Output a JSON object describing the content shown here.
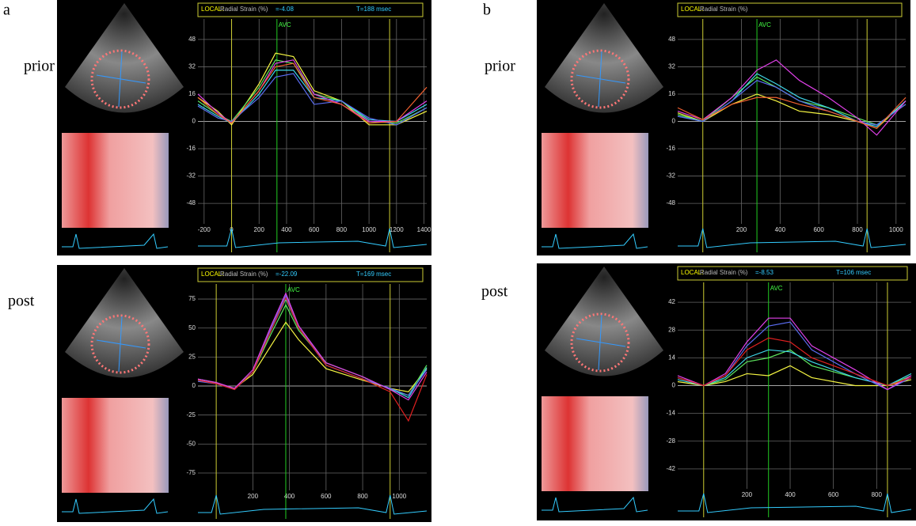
{
  "figure": {
    "a": "a",
    "b": "b",
    "prior_a": "prior",
    "post_a": "post",
    "prior_b": "prior",
    "post_b": "post"
  },
  "chart_data": [
    {
      "type": "line",
      "header": "LOCAL:",
      "title": "Radial Strain (%)",
      "readout": "=-4.08",
      "time": "T=188 msec",
      "marker": "AVC",
      "marker_x": 330,
      "events": [
        0,
        1150
      ],
      "grid": true,
      "x": [
        -245,
        -100,
        0,
        200,
        320,
        450,
        600,
        800,
        1000,
        1200,
        1420
      ],
      "xlim": [
        -245,
        1420
      ],
      "xticks": [
        -200,
        0,
        200,
        400,
        600,
        800,
        1000,
        1200,
        1400
      ],
      "ylim": [
        -60,
        60
      ],
      "yticks": [
        48,
        32,
        16,
        0,
        -16,
        -32,
        -48
      ],
      "series": [
        {
          "color": "#f5f542",
          "values": [
            14,
            6,
            -2,
            22,
            40,
            38,
            18,
            12,
            -2,
            -2,
            6
          ]
        },
        {
          "color": "#5ee65e",
          "values": [
            12,
            4,
            0,
            20,
            36,
            34,
            16,
            12,
            0,
            -1,
            8
          ]
        },
        {
          "color": "#3fd6e8",
          "values": [
            10,
            3,
            -1,
            16,
            30,
            30,
            14,
            12,
            1,
            0,
            10
          ]
        },
        {
          "color": "#5a6cf0",
          "values": [
            9,
            2,
            0,
            14,
            26,
            28,
            10,
            12,
            2,
            -2,
            8
          ]
        },
        {
          "color": "#e040e8",
          "values": [
            16,
            5,
            -1,
            18,
            34,
            36,
            16,
            10,
            0,
            0,
            12
          ]
        },
        {
          "color": "#f06030",
          "values": [
            14,
            4,
            -1,
            18,
            32,
            34,
            14,
            10,
            -1,
            0,
            20
          ]
        }
      ]
    },
    {
      "type": "line",
      "header": "LOCAL:",
      "title": "Radial Strain (%)",
      "readout": "=-22.09",
      "time": "T=169 msec",
      "marker": "AVC",
      "marker_x": 380,
      "events": [
        0,
        950
      ],
      "grid": true,
      "x": [
        -100,
        0,
        100,
        200,
        300,
        380,
        450,
        600,
        800,
        950,
        1050,
        1150
      ],
      "xlim": [
        -100,
        1150
      ],
      "xticks": [
        200,
        400,
        600,
        800,
        1000
      ],
      "ylim": [
        -90,
        88
      ],
      "yticks": [
        75,
        50,
        25,
        0,
        -25,
        -50,
        -75
      ],
      "series": [
        {
          "color": "#f5f542",
          "values": [
            5,
            2,
            -2,
            10,
            35,
            55,
            40,
            15,
            5,
            -2,
            -5,
            15
          ]
        },
        {
          "color": "#5ee65e",
          "values": [
            6,
            3,
            -3,
            12,
            45,
            70,
            48,
            20,
            8,
            -3,
            -8,
            18
          ]
        },
        {
          "color": "#3fd6e8",
          "values": [
            5,
            2,
            -2,
            12,
            48,
            75,
            50,
            18,
            6,
            -2,
            -10,
            16
          ]
        },
        {
          "color": "#5a6cf0",
          "values": [
            4,
            2,
            -3,
            12,
            50,
            78,
            52,
            18,
            6,
            -2,
            -8,
            14
          ]
        },
        {
          "color": "#e040e8",
          "values": [
            6,
            3,
            -2,
            14,
            52,
            80,
            52,
            20,
            8,
            -3,
            -12,
            12
          ]
        },
        {
          "color": "#e02020",
          "values": [
            5,
            2,
            -3,
            12,
            48,
            76,
            50,
            18,
            6,
            -5,
            -30,
            10
          ]
        }
      ]
    },
    {
      "type": "line",
      "header": "LOCAL:",
      "title": "Radial Strain (%)",
      "marker": "AVC",
      "marker_x": 280,
      "events": [
        0,
        850
      ],
      "grid": true,
      "x": [
        -130,
        0,
        150,
        280,
        380,
        500,
        650,
        800,
        900,
        1050
      ],
      "xlim": [
        -130,
        1050
      ],
      "xticks": [
        200,
        400,
        600,
        800,
        1000
      ],
      "ylim": [
        -60,
        60
      ],
      "yticks": [
        48,
        32,
        16,
        0,
        -16,
        -32,
        -48
      ],
      "series": [
        {
          "color": "#f5f542",
          "values": [
            5,
            0,
            10,
            16,
            12,
            6,
            4,
            0,
            -4,
            12
          ]
        },
        {
          "color": "#5ee65e",
          "values": [
            4,
            0,
            14,
            26,
            20,
            12,
            8,
            2,
            -2,
            10
          ]
        },
        {
          "color": "#3fd6e8",
          "values": [
            3,
            0,
            12,
            28,
            22,
            14,
            8,
            0,
            -3,
            12
          ]
        },
        {
          "color": "#5a6cf0",
          "values": [
            3,
            0,
            12,
            24,
            20,
            12,
            6,
            0,
            -2,
            10
          ]
        },
        {
          "color": "#e040e8",
          "values": [
            6,
            1,
            14,
            30,
            36,
            24,
            14,
            2,
            -8,
            12
          ]
        },
        {
          "color": "#f06030",
          "values": [
            8,
            1,
            10,
            14,
            14,
            10,
            6,
            0,
            -4,
            14
          ]
        }
      ]
    },
    {
      "type": "line",
      "header": "LOCAL:",
      "title": "Radial Strain (%)",
      "readout": "=-8.53",
      "time": "T=106 msec",
      "marker": "AVC",
      "marker_x": 300,
      "events": [
        0,
        850
      ],
      "grid": true,
      "x": [
        -120,
        0,
        100,
        200,
        300,
        400,
        500,
        700,
        850,
        960
      ],
      "xlim": [
        -120,
        960
      ],
      "xticks": [
        200,
        400,
        600,
        800
      ],
      "ylim": [
        -52,
        52
      ],
      "yticks": [
        42,
        28,
        14,
        0,
        -14,
        -28,
        -42
      ],
      "series": [
        {
          "color": "#f5f542",
          "values": [
            2,
            0,
            2,
            6,
            5,
            10,
            4,
            0,
            0,
            3
          ]
        },
        {
          "color": "#5ee65e",
          "values": [
            4,
            0,
            3,
            12,
            14,
            18,
            10,
            4,
            0,
            5
          ]
        },
        {
          "color": "#3fd6e8",
          "values": [
            3,
            0,
            4,
            14,
            18,
            17,
            12,
            4,
            0,
            6
          ]
        },
        {
          "color": "#5a6cf0",
          "values": [
            4,
            0,
            5,
            20,
            30,
            32,
            18,
            6,
            -2,
            4
          ]
        },
        {
          "color": "#e040e8",
          "values": [
            5,
            0,
            6,
            22,
            34,
            34,
            20,
            8,
            -2,
            5
          ]
        },
        {
          "color": "#e02020",
          "values": [
            4,
            0,
            5,
            18,
            24,
            22,
            14,
            6,
            0,
            4
          ]
        }
      ]
    }
  ]
}
